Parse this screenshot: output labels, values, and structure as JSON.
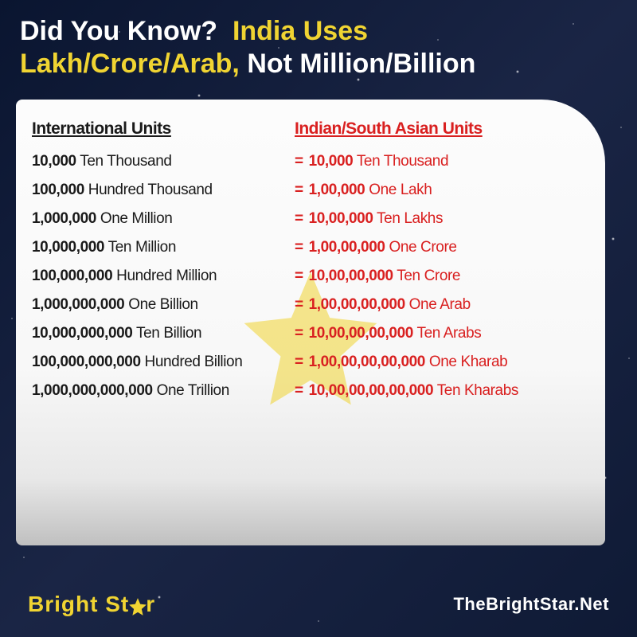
{
  "header": {
    "line1_a": "Did You Know?",
    "line1_b": "India Uses",
    "line2_a": "Lakh/Crore/Arab,",
    "line2_b": "Not Million/Billion"
  },
  "columns": {
    "left": "International Units",
    "right": "Indian/South Asian Units"
  },
  "rows": [
    {
      "intl_num": "10,000",
      "intl_label": "Ten Thousand",
      "ind_num": "10,000",
      "ind_label": "Ten Thousand"
    },
    {
      "intl_num": "100,000",
      "intl_label": "Hundred Thousand",
      "ind_num": "1,00,000",
      "ind_label": "One Lakh"
    },
    {
      "intl_num": "1,000,000",
      "intl_label": "One Million",
      "ind_num": "10,00,000",
      "ind_label": "Ten Lakhs"
    },
    {
      "intl_num": "10,000,000",
      "intl_label": "Ten Million",
      "ind_num": "1,00,00,000",
      "ind_label": "One Crore"
    },
    {
      "intl_num": "100,000,000",
      "intl_label": "Hundred Million",
      "ind_num": "10,00,00,000",
      "ind_label": "Ten Crore"
    },
    {
      "intl_num": "1,000,000,000",
      "intl_label": "One Billion",
      "ind_num": "1,00,00,00,000",
      "ind_label": "One Arab"
    },
    {
      "intl_num": "10,000,000,000",
      "intl_label": "Ten Billion",
      "ind_num": "10,00,00,00,000",
      "ind_label": "Ten Arabs"
    },
    {
      "intl_num": "100,000,000,000",
      "intl_label": "Hundred Billion",
      "ind_num": "1,00,00,00,00,000",
      "ind_label": "One Kharab"
    },
    {
      "intl_num": "1,000,000,000,000",
      "intl_label": "One Trillion",
      "ind_num": "10,00,00,00,00,000",
      "ind_label": "Ten Kharabs"
    }
  ],
  "footer": {
    "brand_a": "Bright St",
    "brand_b": "r",
    "website": "TheBrightStar.Net"
  },
  "colors": {
    "yellow": "#f0d432",
    "red": "#d92020",
    "white": "#ffffff",
    "bg_dark": "#0f1a35"
  }
}
